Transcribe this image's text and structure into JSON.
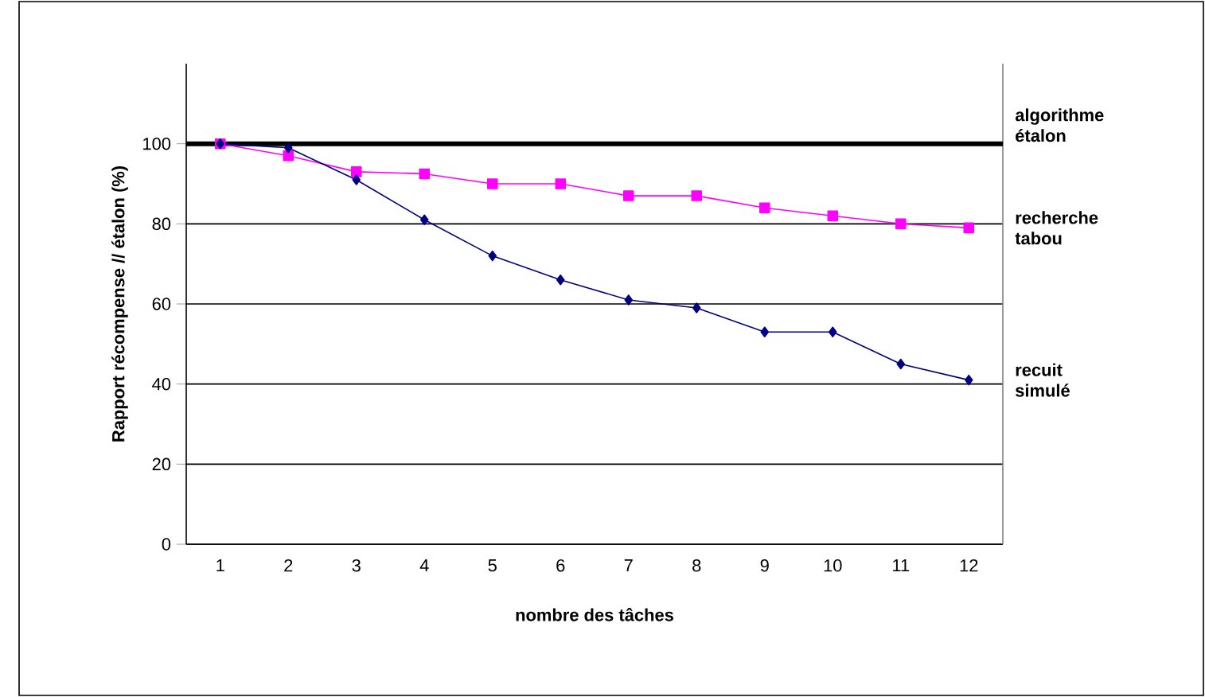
{
  "chart_data": {
    "type": "line",
    "xlabel": "nombre des tâches",
    "ylabel": "Rapport récompense // étalon (%)",
    "categories": [
      "1",
      "2",
      "3",
      "4",
      "5",
      "6",
      "7",
      "8",
      "9",
      "10",
      "11",
      "12"
    ],
    "series": [
      {
        "name": "recherche tabou",
        "color": "#ff00ff",
        "marker": "square",
        "values": [
          100,
          97,
          93,
          92.5,
          90,
          90,
          87,
          87,
          84,
          82,
          80,
          79
        ]
      },
      {
        "name": "recuit simulé",
        "color": "#000080",
        "marker": "diamond",
        "values": [
          100,
          99,
          91,
          81,
          72,
          66,
          61,
          59,
          53,
          53,
          45,
          41
        ]
      }
    ],
    "ref_lines": [
      {
        "axis": "y",
        "value": 100,
        "label": "algorithme étalon",
        "color": "#000000"
      }
    ],
    "ylim": [
      0,
      120
    ],
    "yticks": [
      0,
      20,
      40,
      60,
      80,
      100
    ],
    "grid": "y",
    "line_style": "solid"
  }
}
